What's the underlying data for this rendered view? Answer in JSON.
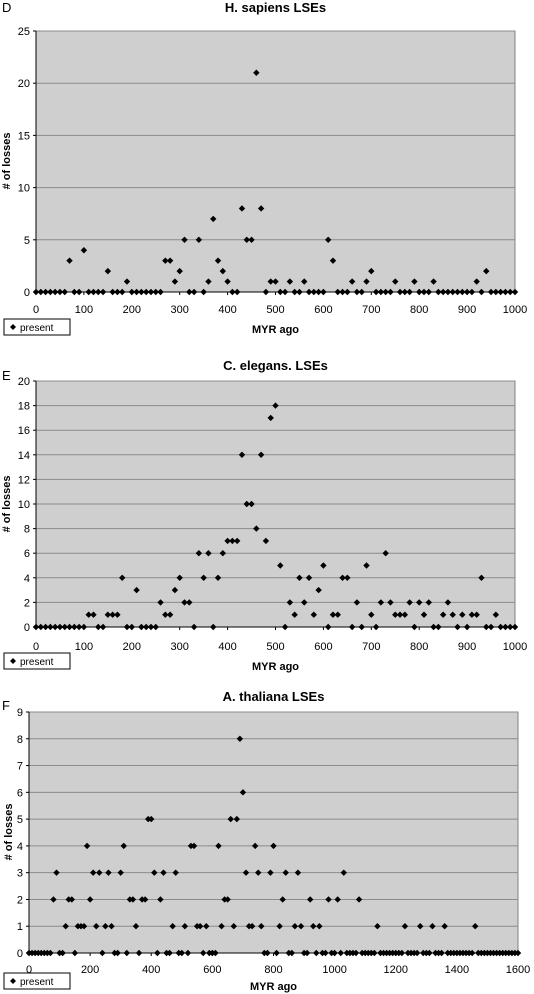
{
  "chart_data": [
    {
      "panel": "D",
      "type": "scatter",
      "title": "H. sapiens LSEs",
      "xlabel": "MYR ago",
      "ylabel": "# of losses",
      "xlim": [
        0,
        1000
      ],
      "ylim": [
        0,
        25
      ],
      "xticks": [
        0,
        100,
        200,
        300,
        400,
        500,
        600,
        700,
        800,
        900,
        1000
      ],
      "yticks": [
        0,
        5,
        10,
        15,
        20,
        25
      ],
      "grid": true,
      "legend": "bottom-left",
      "series": [
        {
          "name": "present",
          "x": [
            0,
            10,
            20,
            30,
            40,
            50,
            60,
            70,
            80,
            90,
            100,
            110,
            120,
            130,
            140,
            150,
            160,
            170,
            180,
            190,
            200,
            210,
            220,
            230,
            240,
            250,
            260,
            270,
            280,
            290,
            300,
            310,
            320,
            330,
            340,
            350,
            360,
            370,
            380,
            390,
            400,
            410,
            420,
            430,
            440,
            450,
            460,
            470,
            480,
            490,
            500,
            510,
            520,
            530,
            540,
            550,
            560,
            570,
            580,
            590,
            600,
            610,
            620,
            630,
            640,
            650,
            660,
            670,
            680,
            690,
            700,
            710,
            720,
            730,
            740,
            750,
            760,
            770,
            780,
            790,
            800,
            810,
            820,
            830,
            840,
            850,
            860,
            870,
            880,
            890,
            900,
            910,
            920,
            930,
            940,
            950,
            960,
            970,
            980,
            990,
            1000
          ],
          "y": [
            0,
            0,
            0,
            0,
            0,
            0,
            0,
            3,
            0,
            0,
            4,
            0,
            0,
            0,
            0,
            2,
            0,
            0,
            0,
            1,
            0,
            0,
            0,
            0,
            0,
            0,
            0,
            3,
            3,
            1,
            2,
            5,
            0,
            0,
            5,
            0,
            1,
            7,
            3,
            2,
            1,
            0,
            0,
            8,
            5,
            5,
            21,
            8,
            0,
            1,
            1,
            0,
            0,
            1,
            0,
            0,
            1,
            0,
            0,
            0,
            0,
            5,
            3,
            0,
            0,
            0,
            1,
            0,
            0,
            1,
            2,
            0,
            0,
            0,
            0,
            1,
            0,
            0,
            0,
            1,
            0,
            0,
            0,
            1,
            0,
            0,
            0,
            0,
            0,
            0,
            0,
            0,
            1,
            0,
            2,
            0,
            0,
            0,
            0,
            0,
            0
          ]
        }
      ]
    },
    {
      "panel": "E",
      "type": "scatter",
      "title": "C. elegans. LSEs",
      "xlabel": "MYR ago",
      "ylabel": "# of losses",
      "xlim": [
        0,
        1000
      ],
      "ylim": [
        0,
        20
      ],
      "xticks": [
        0,
        100,
        200,
        300,
        400,
        500,
        600,
        700,
        800,
        900,
        1000
      ],
      "yticks": [
        0,
        2,
        4,
        6,
        8,
        10,
        12,
        14,
        16,
        18,
        20
      ],
      "grid": true,
      "legend": "bottom-left",
      "series": [
        {
          "name": "present",
          "x": [
            0,
            10,
            20,
            30,
            40,
            50,
            60,
            70,
            80,
            90,
            100,
            110,
            120,
            130,
            140,
            150,
            160,
            170,
            180,
            190,
            200,
            210,
            220,
            230,
            240,
            250,
            260,
            270,
            280,
            290,
            300,
            310,
            320,
            330,
            340,
            350,
            360,
            370,
            380,
            390,
            400,
            410,
            420,
            430,
            440,
            450,
            460,
            470,
            480,
            490,
            500,
            510,
            520,
            530,
            540,
            550,
            560,
            570,
            580,
            590,
            600,
            610,
            620,
            630,
            640,
            650,
            660,
            670,
            680,
            690,
            700,
            710,
            720,
            730,
            740,
            750,
            760,
            770,
            780,
            790,
            800,
            810,
            820,
            830,
            840,
            850,
            860,
            870,
            880,
            890,
            900,
            910,
            920,
            930,
            940,
            950,
            960,
            970,
            980,
            990,
            1000
          ],
          "y": [
            0,
            0,
            0,
            0,
            0,
            0,
            0,
            0,
            0,
            0,
            0,
            1,
            1,
            0,
            0,
            1,
            1,
            1,
            4,
            0,
            0,
            3,
            0,
            0,
            0,
            0,
            2,
            1,
            1,
            3,
            4,
            2,
            2,
            0,
            6,
            4,
            6,
            0,
            4,
            6,
            7,
            7,
            7,
            14,
            10,
            10,
            8,
            14,
            7,
            17,
            18,
            5,
            0,
            2,
            1,
            4,
            2,
            4,
            1,
            3,
            5,
            0,
            1,
            1,
            4,
            4,
            0,
            2,
            0,
            5,
            1,
            0,
            2,
            6,
            2,
            1,
            1,
            1,
            2,
            0,
            2,
            1,
            2,
            0,
            0,
            1,
            2,
            1,
            0,
            1,
            0,
            1,
            1,
            4,
            0,
            0,
            1,
            0,
            0,
            0,
            0
          ]
        }
      ]
    },
    {
      "panel": "F",
      "type": "scatter",
      "title": "A. thaliana LSEs",
      "xlabel": "MYR ago",
      "ylabel": "# of losses",
      "xlim": [
        0,
        1600
      ],
      "ylim": [
        0,
        9
      ],
      "xticks": [
        0,
        200,
        400,
        600,
        800,
        1000,
        1200,
        1400,
        1600
      ],
      "yticks": [
        0,
        1,
        2,
        3,
        4,
        5,
        6,
        7,
        8,
        9
      ],
      "grid": true,
      "legend": "bottom-left",
      "series": [
        {
          "name": "present",
          "x": [
            0,
            10,
            20,
            30,
            40,
            50,
            60,
            70,
            80,
            90,
            100,
            110,
            120,
            130,
            140,
            150,
            160,
            170,
            180,
            190,
            200,
            210,
            220,
            230,
            240,
            250,
            260,
            270,
            280,
            290,
            300,
            310,
            320,
            330,
            340,
            350,
            360,
            370,
            380,
            390,
            400,
            410,
            420,
            430,
            440,
            450,
            460,
            470,
            480,
            490,
            500,
            510,
            520,
            530,
            540,
            550,
            560,
            570,
            580,
            590,
            600,
            610,
            620,
            630,
            640,
            650,
            660,
            670,
            680,
            690,
            700,
            710,
            720,
            730,
            740,
            750,
            760,
            770,
            780,
            790,
            800,
            810,
            820,
            830,
            840,
            850,
            860,
            870,
            880,
            890,
            900,
            910,
            920,
            930,
            940,
            950,
            960,
            970,
            980,
            990,
            1000,
            1010,
            1020,
            1030,
            1040,
            1050,
            1060,
            1070,
            1080,
            1090,
            1100,
            1110,
            1120,
            1130,
            1140,
            1150,
            1160,
            1170,
            1180,
            1190,
            1200,
            1210,
            1220,
            1230,
            1240,
            1250,
            1260,
            1270,
            1280,
            1290,
            1300,
            1310,
            1320,
            1330,
            1340,
            1350,
            1360,
            1370,
            1380,
            1390,
            1400,
            1410,
            1420,
            1430,
            1440,
            1450,
            1460,
            1470,
            1480,
            1490,
            1500,
            1510,
            1520,
            1530,
            1540,
            1550,
            1560,
            1570,
            1580,
            1590,
            1600
          ],
          "y": [
            0,
            0,
            0,
            0,
            0,
            0,
            0,
            0,
            2,
            3,
            0,
            0,
            1,
            2,
            2,
            0,
            1,
            1,
            1,
            4,
            2,
            3,
            1,
            3,
            0,
            1,
            3,
            1,
            0,
            0,
            3,
            4,
            0,
            2,
            2,
            1,
            0,
            2,
            2,
            5,
            5,
            3,
            0,
            2,
            3,
            0,
            0,
            1,
            3,
            0,
            0,
            1,
            0,
            4,
            4,
            1,
            1,
            0,
            1,
            0,
            0,
            0,
            4,
            1,
            2,
            2,
            5,
            1,
            5,
            8,
            6,
            3,
            1,
            1,
            4,
            3,
            1,
            0,
            0,
            3,
            4,
            0,
            1,
            2,
            3,
            0,
            0,
            1,
            3,
            1,
            0,
            0,
            2,
            1,
            0,
            1,
            0,
            0,
            2,
            0,
            0,
            2,
            0,
            3,
            0,
            0,
            0,
            0,
            2,
            0,
            0,
            0,
            0,
            0,
            1,
            0,
            0,
            0,
            0,
            0,
            0,
            0,
            0,
            1,
            0,
            0,
            0,
            0,
            1,
            0,
            0,
            0,
            1,
            0,
            0,
            0,
            1,
            0,
            0,
            0,
            0,
            0,
            0,
            0,
            0,
            0,
            1,
            0,
            0,
            0,
            0,
            0,
            0,
            0,
            0,
            0,
            0,
            0,
            0,
            0,
            0
          ]
        }
      ]
    }
  ]
}
